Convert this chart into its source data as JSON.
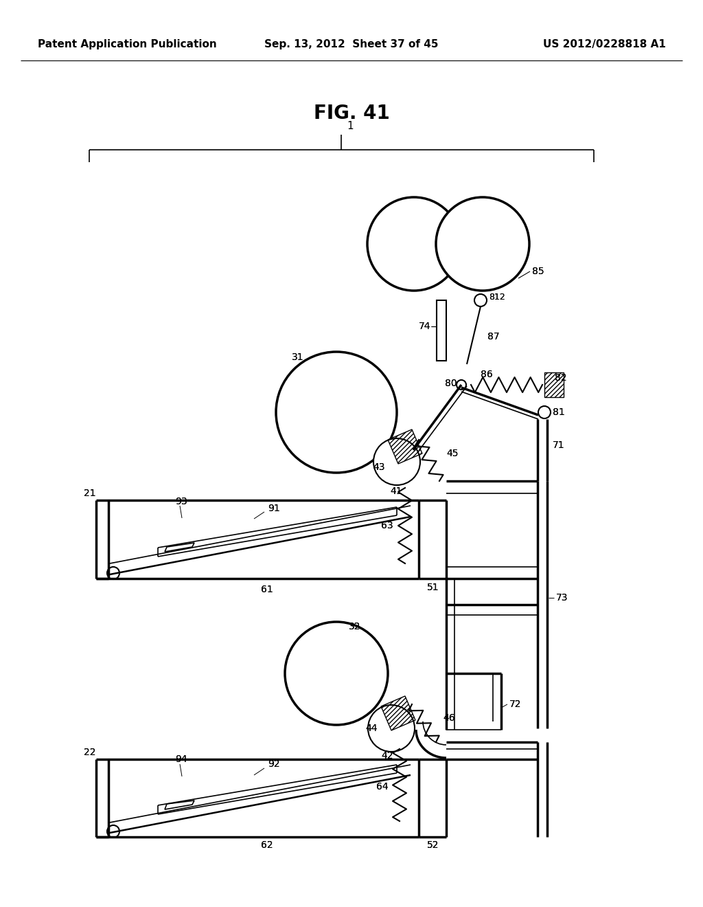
{
  "title": "FIG. 41",
  "header_left": "Patent Application Publication",
  "header_center": "Sep. 13, 2012  Sheet 37 of 45",
  "header_right": "US 2012/0228818 A1",
  "bg_color": "#ffffff",
  "line_color": "#000000"
}
